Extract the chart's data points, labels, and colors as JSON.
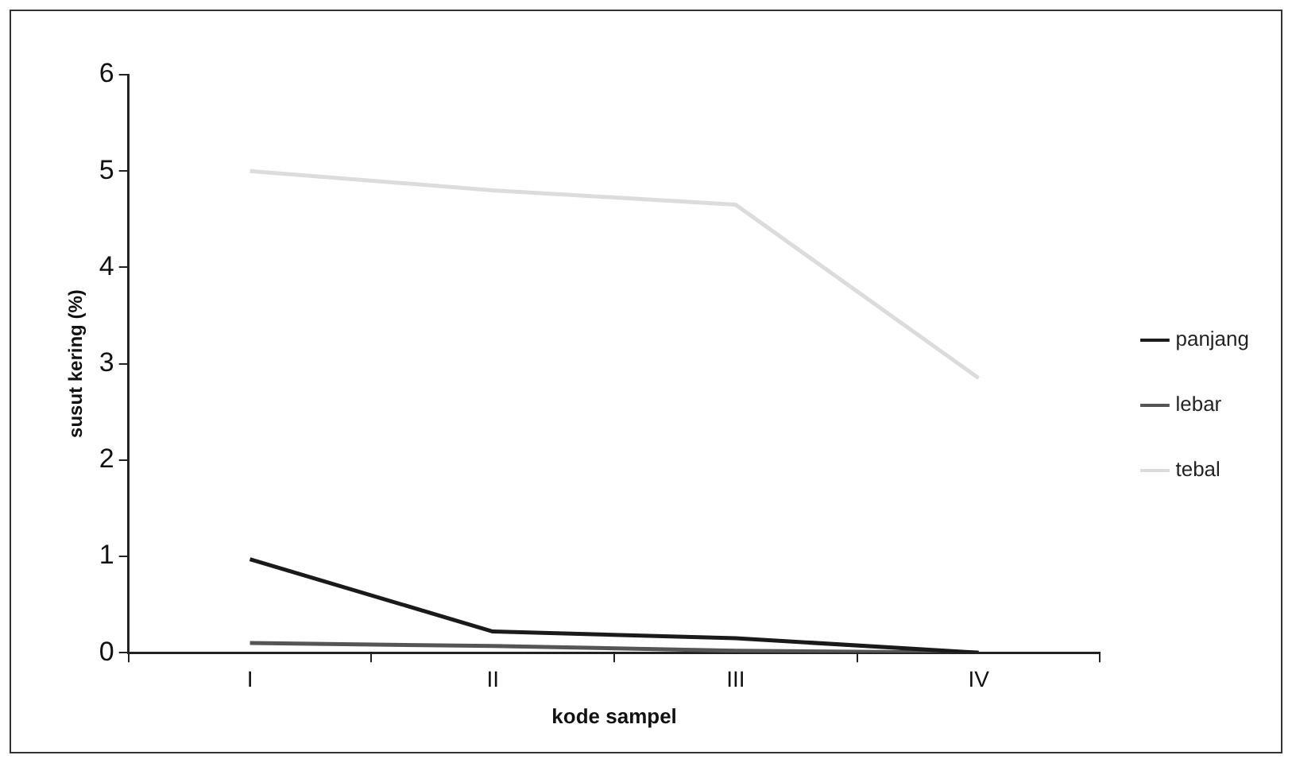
{
  "chart_data": {
    "type": "line",
    "xlabel": "kode sampel",
    "ylabel": "susut kering (%)",
    "categories": [
      "I",
      "II",
      "III",
      "IV"
    ],
    "series": [
      {
        "name": "panjang",
        "color": "#1a1a1a",
        "values": [
          0.97,
          0.22,
          0.15,
          0.0
        ]
      },
      {
        "name": "lebar",
        "color": "#555555",
        "values": [
          0.1,
          0.07,
          0.02,
          0.0
        ]
      },
      {
        "name": "tebal",
        "color": "#dcdcdc",
        "values": [
          5.0,
          4.8,
          4.65,
          2.85
        ]
      }
    ],
    "ylim": [
      0,
      6
    ],
    "yticks": [
      0,
      1,
      2,
      3,
      4,
      5,
      6
    ],
    "grid": false,
    "legend": "right",
    "marker": "none",
    "line_style": "solid"
  }
}
